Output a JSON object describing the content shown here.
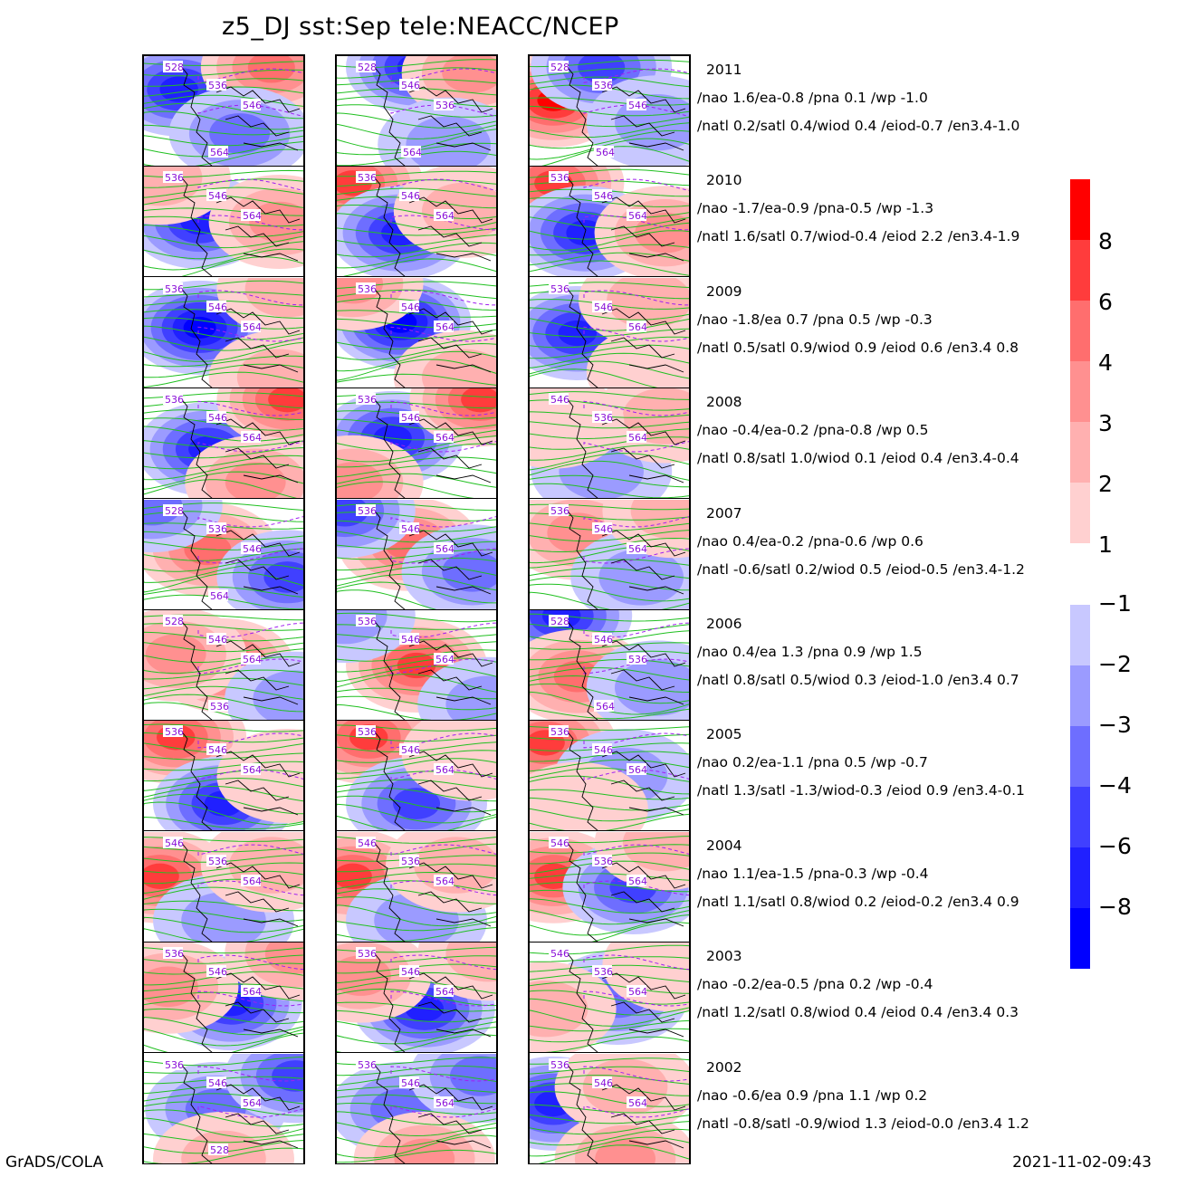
{
  "title": "z5_DJ  sst:Sep  tele:NEACC/NCEP",
  "footer": {
    "left": "GrADS/COLA",
    "right": "2021-11-02-09:43"
  },
  "colors": {
    "pos": [
      "#ffd0d0",
      "#ffb0b0",
      "#ff9090",
      "#ff6e6e",
      "#ff3c3c",
      "#ff0000"
    ],
    "neg": [
      "#c8c8ff",
      "#9b9bff",
      "#6e6eff",
      "#4040ff",
      "#2020ff",
      "#0000ff"
    ],
    "contour": "#20c020",
    "dashed": "#a020f0"
  },
  "colorbar_pos_labels": [
    "8",
    "6",
    "4",
    "3",
    "2",
    "1"
  ],
  "colorbar_neg_labels": [
    "-1",
    "-2",
    "-3",
    "-4",
    "-6",
    "-8"
  ],
  "rows": [
    {
      "year": "2011",
      "line1": "/nao  1.6/ea-0.8 /pna 0.1 /wp -1.0",
      "line2": "/natl  0.2/satl  0.4/wiod 0.4 /eiod-0.7 /en3.4-1.0",
      "maps": [
        {
          "labels": [
            "528",
            "536",
            "546",
            "564"
          ],
          "blobs": [
            [
              -7,
              0.22,
              0.3
            ],
            [
              5,
              0.8,
              0.1
            ],
            [
              -3,
              0.6,
              0.7
            ]
          ]
        },
        {
          "labels": [
            "528",
            "546",
            "536",
            "564"
          ],
          "blobs": [
            [
              -6,
              0.5,
              0.1
            ],
            [
              3,
              0.85,
              0.15
            ],
            [
              -2,
              0.7,
              0.8
            ]
          ]
        },
        {
          "labels": [
            "528",
            "536",
            "546",
            "564"
          ],
          "blobs": [
            [
              8,
              0.15,
              0.4
            ],
            [
              -5,
              0.45,
              0.1
            ],
            [
              -2,
              0.8,
              0.6
            ]
          ]
        }
      ]
    },
    {
      "year": "2010",
      "line1": "/nao -1.7/ea-0.9 /pna-0.5 /wp -1.3",
      "line2": "/natl  1.6/satl  0.7/wiod-0.4 /eiod 2.2 /en3.4-1.9",
      "maps": [
        {
          "labels": [
            "536",
            "546",
            "564"
          ],
          "blobs": [
            [
              -7,
              0.35,
              0.5
            ],
            [
              3,
              0.85,
              0.5
            ],
            [
              2,
              0.1,
              0.1
            ]
          ]
        },
        {
          "labels": [
            "536",
            "546",
            "564"
          ],
          "blobs": [
            [
              6,
              0.1,
              0.15
            ],
            [
              -6,
              0.4,
              0.6
            ],
            [
              2,
              0.8,
              0.4
            ]
          ]
        },
        {
          "labels": [
            "536",
            "546",
            "564"
          ],
          "blobs": [
            [
              7,
              0.15,
              0.15
            ],
            [
              -7,
              0.35,
              0.6
            ],
            [
              3,
              0.85,
              0.6
            ]
          ]
        }
      ]
    },
    {
      "year": "2009",
      "line1": "/nao -1.8/ea 0.7 /pna 0.5 /wp -0.3",
      "line2": "/natl  0.5/satl  0.9/wiod 0.9 /eiod 0.6 /en3.4 0.8",
      "maps": [
        {
          "labels": [
            "536",
            "546",
            "564"
          ],
          "blobs": [
            [
              -8,
              0.35,
              0.45
            ],
            [
              2,
              0.85,
              0.9
            ],
            [
              2,
              0.9,
              0.1
            ]
          ]
        },
        {
          "labels": [
            "536",
            "546",
            "564"
          ],
          "blobs": [
            [
              -8,
              0.4,
              0.4
            ],
            [
              2,
              0.8,
              0.9
            ],
            [
              3,
              0.1,
              0.05
            ]
          ]
        },
        {
          "labels": [
            "536",
            "546",
            "564"
          ],
          "blobs": [
            [
              -7,
              0.3,
              0.5
            ],
            [
              2,
              0.75,
              0.2
            ],
            [
              1,
              0.8,
              0.85
            ]
          ]
        }
      ]
    },
    {
      "year": "2008",
      "line1": "/nao -0.4/ea-0.2 /pna-0.8 /wp  0.5",
      "line2": "/natl  0.8/satl  1.0/wiod 0.1 /eiod 0.4 /en3.4-0.4",
      "maps": [
        {
          "labels": [
            "536",
            "546",
            "564"
          ],
          "blobs": [
            [
              -7,
              0.4,
              0.55
            ],
            [
              6,
              0.9,
              0.1
            ],
            [
              3,
              0.7,
              0.85
            ]
          ]
        },
        {
          "labels": [
            "536",
            "546",
            "564"
          ],
          "blobs": [
            [
              -6,
              0.35,
              0.45
            ],
            [
              6,
              0.9,
              0.1
            ],
            [
              3,
              0.1,
              0.85
            ]
          ]
        },
        {
          "labels": [
            "546",
            "536",
            "564"
          ],
          "blobs": [
            [
              -2,
              0.45,
              0.75
            ],
            [
              2,
              0.85,
              0.25
            ],
            [
              1,
              0.15,
              0.3
            ]
          ]
        }
      ]
    },
    {
      "year": "2007",
      "line1": "/nao  0.4/ea-0.2 /pna-0.6 /wp  0.6",
      "line2": "/natl -0.6/satl  0.2/wiod 0.5 /eiod-0.5 /en3.4-1.2",
      "maps": [
        {
          "labels": [
            "528",
            "536",
            "546",
            "564"
          ],
          "blobs": [
            [
              5,
              0.4,
              0.45
            ],
            [
              -4,
              0.9,
              0.7
            ],
            [
              -3,
              0.05,
              0.05
            ]
          ]
        },
        {
          "labels": [
            "536",
            "546",
            "564"
          ],
          "blobs": [
            [
              5,
              0.45,
              0.4
            ],
            [
              -3,
              0.85,
              0.65
            ],
            [
              -4,
              0.05,
              0.1
            ]
          ]
        },
        {
          "labels": [
            "536",
            "546",
            "564"
          ],
          "blobs": [
            [
              3,
              0.3,
              0.3
            ],
            [
              -2,
              0.7,
              0.7
            ],
            [
              2,
              0.9,
              0.1
            ]
          ]
        }
      ]
    },
    {
      "year": "2006",
      "line1": "/nao  0.4/ea 1.3 /pna 0.9 /wp  1.5",
      "line2": "/natl  0.8/satl  0.5/wiod 0.3 /eiod-1.0 /en3.4 0.7",
      "maps": [
        {
          "labels": [
            "528",
            "546",
            "564",
            "536"
          ],
          "blobs": [
            [
              6,
              0.5,
              0.5
            ],
            [
              3,
              0.2,
              0.4
            ],
            [
              -2,
              0.95,
              0.8
            ]
          ]
        },
        {
          "labels": [
            "536",
            "546",
            "564"
          ],
          "blobs": [
            [
              6,
              0.5,
              0.5
            ],
            [
              -2,
              0.95,
              0.85
            ],
            [
              -2,
              0.05,
              0.05
            ]
          ]
        },
        {
          "labels": [
            "528",
            "546",
            "536",
            "564"
          ],
          "blobs": [
            [
              -6,
              0.2,
              0.05
            ],
            [
              4,
              0.3,
              0.6
            ],
            [
              -2,
              0.8,
              0.7
            ]
          ]
        }
      ]
    },
    {
      "year": "2005",
      "line1": "/nao  0.2/ea-1.1 /pna 0.5 /wp -0.7",
      "line2": "/natl  1.3/satl -1.3/wiod-0.3 /eiod 0.9 /en3.4-0.1",
      "maps": [
        {
          "labels": [
            "536",
            "546",
            "564"
          ],
          "blobs": [
            [
              7,
              0.2,
              0.15
            ],
            [
              -6,
              0.5,
              0.75
            ],
            [
              1,
              0.9,
              0.5
            ]
          ]
        },
        {
          "labels": [
            "536",
            "546",
            "564"
          ],
          "blobs": [
            [
              7,
              0.2,
              0.15
            ],
            [
              -5,
              0.5,
              0.75
            ],
            [
              1,
              0.85,
              0.3
            ]
          ]
        },
        {
          "labels": [
            "536",
            "546",
            "564"
          ],
          "blobs": [
            [
              7,
              0.1,
              0.2
            ],
            [
              -2,
              0.6,
              0.5
            ],
            [
              1,
              0.3,
              0.8
            ]
          ]
        }
      ]
    },
    {
      "year": "2004",
      "line1": "/nao  1.1/ea-1.5 /pna-0.3 /wp -0.4",
      "line2": "/natl  1.1/satl  0.8/wiod 0.2 /eiod-0.2 /en3.4 0.9",
      "maps": [
        {
          "labels": [
            "546",
            "536",
            "564"
          ],
          "blobs": [
            [
              6,
              0.1,
              0.4
            ],
            [
              -2,
              0.5,
              0.8
            ],
            [
              2,
              0.8,
              0.3
            ]
          ]
        },
        {
          "labels": [
            "546",
            "536",
            "564"
          ],
          "blobs": [
            [
              6,
              0.1,
              0.4
            ],
            [
              -2,
              0.5,
              0.8
            ],
            [
              2,
              0.75,
              0.3
            ]
          ]
        },
        {
          "labels": [
            "546",
            "536",
            "564"
          ],
          "blobs": [
            [
              7,
              0.15,
              0.4
            ],
            [
              -4,
              0.65,
              0.5
            ],
            [
              2,
              0.85,
              0.1
            ]
          ]
        }
      ]
    },
    {
      "year": "2003",
      "line1": "/nao -0.2/ea-0.5 /pna 0.2 /wp -0.4",
      "line2": "/natl  1.2/satl  0.8/wiod 0.4 /eiod 0.4 /en3.4 0.3",
      "maps": [
        {
          "labels": [
            "536",
            "546",
            "564"
          ],
          "blobs": [
            [
              -7,
              0.55,
              0.55
            ],
            [
              3,
              0.15,
              0.4
            ],
            [
              3,
              0.95,
              0.1
            ]
          ]
        },
        {
          "labels": [
            "536",
            "546",
            "564"
          ],
          "blobs": [
            [
              -6,
              0.55,
              0.6
            ],
            [
              3,
              0.15,
              0.3
            ],
            [
              2,
              0.95,
              0.1
            ]
          ]
        },
        {
          "labels": [
            "546",
            "536",
            "564"
          ],
          "blobs": [
            [
              -3,
              0.55,
              0.5
            ],
            [
              2,
              0.1,
              0.6
            ],
            [
              1,
              0.9,
              0.2
            ]
          ]
        }
      ]
    },
    {
      "year": "2002",
      "line1": "/nao -0.6/ea 0.9 /pna 1.1 /wp  0.2",
      "line2": "/natl -0.8/satl -0.9/wiod 1.3 /eiod-0.0 /en3.4 1.2",
      "maps": [
        {
          "labels": [
            "536",
            "546",
            "564",
            "528"
          ],
          "blobs": [
            [
              -3,
              0.45,
              0.5
            ],
            [
              -4,
              0.95,
              0.2
            ],
            [
              2,
              0.5,
              0.95
            ]
          ]
        },
        {
          "labels": [
            "536",
            "546",
            "564"
          ],
          "blobs": [
            [
              -3,
              0.4,
              0.5
            ],
            [
              -3,
              0.9,
              0.2
            ],
            [
              3,
              0.55,
              0.95
            ]
          ]
        },
        {
          "labels": [
            "536",
            "546",
            "564"
          ],
          "blobs": [
            [
              -6,
              0.15,
              0.45
            ],
            [
              2,
              0.6,
              0.3
            ],
            [
              3,
              0.6,
              0.95
            ]
          ]
        }
      ]
    }
  ]
}
